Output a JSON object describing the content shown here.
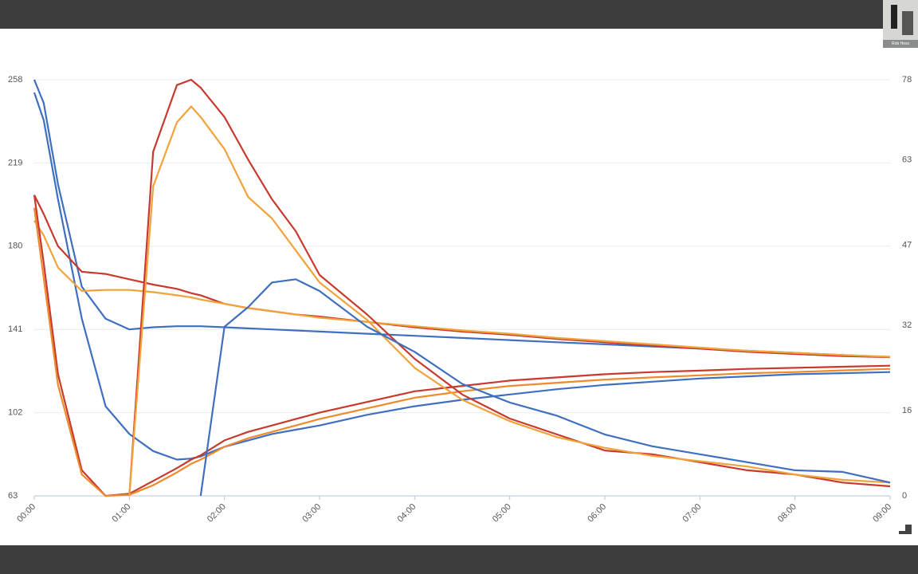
{
  "video_tile": {
    "label": "Rob Hess"
  },
  "chart_data": {
    "type": "line",
    "x": [
      0,
      0.1,
      0.25,
      0.5,
      0.75,
      1,
      1.25,
      1.5,
      1.65,
      1.75,
      2,
      2.25,
      2.5,
      2.75,
      3,
      3.5,
      4,
      4.5,
      5,
      5.5,
      6,
      6.5,
      7,
      7.5,
      8,
      8.5,
      9
    ],
    "xlim": [
      0,
      9
    ],
    "xticks": [
      {
        "value": 0,
        "label": "00:00"
      },
      {
        "value": 1,
        "label": "01:00"
      },
      {
        "value": 2,
        "label": "02:00"
      },
      {
        "value": 3,
        "label": "03:00"
      },
      {
        "value": 4,
        "label": "04:00"
      },
      {
        "value": 5,
        "label": "05:00"
      },
      {
        "value": 6,
        "label": "06:00"
      },
      {
        "value": 7,
        "label": "07:00"
      },
      {
        "value": 8,
        "label": "08:00"
      },
      {
        "value": 9,
        "label": "09:00"
      }
    ],
    "ylim": [
      63,
      258
    ],
    "yticks": [
      63,
      102,
      141,
      180,
      219,
      258
    ],
    "y2lim": [
      0,
      78
    ],
    "y2ticks": [
      0,
      16,
      32,
      47,
      63,
      78
    ],
    "grid": true,
    "series": [
      {
        "color": "#3f6fc0",
        "values": [
          258,
          247,
          209,
          161,
          146,
          141,
          142,
          142.5,
          142.5,
          142.5,
          142,
          141.5,
          141,
          140.5,
          140,
          139,
          138,
          137,
          136,
          135,
          134,
          133,
          132,
          131,
          130,
          129,
          128
        ]
      },
      {
        "color": "#3f6fc0",
        "values": [
          252,
          239,
          202,
          146,
          105,
          92,
          84,
          80,
          80.5,
          81.5,
          86,
          89,
          92,
          94,
          96,
          101,
          105,
          108,
          110.5,
          113,
          115,
          116.5,
          118,
          119,
          120,
          120.5,
          121
        ]
      },
      {
        "color": "#c8392e",
        "values": [
          204,
          195,
          180,
          168,
          167,
          164.5,
          162,
          160,
          158,
          157,
          153,
          151,
          149.5,
          148,
          147,
          144.5,
          142,
          140,
          138.5,
          136.5,
          135,
          133.5,
          132,
          130.5,
          129.5,
          128.5,
          128
        ]
      },
      {
        "color": "#f0a33a",
        "values": [
          192,
          185,
          170,
          159,
          159.5,
          159.5,
          158.5,
          157,
          156,
          155,
          153,
          151,
          149.5,
          148,
          146.5,
          144.5,
          142.5,
          140.5,
          139,
          137,
          135.5,
          134,
          132.5,
          131,
          130,
          129,
          128.2
        ]
      },
      {
        "color": "#c8392e",
        "values": [
          204,
          172,
          120,
          75,
          63,
          64,
          70,
          76,
          80,
          82,
          89,
          93,
          96,
          99,
          102,
          107,
          112,
          114.5,
          117,
          118.5,
          120,
          121,
          121.7,
          122.5,
          123,
          123.5,
          124
        ]
      },
      {
        "color": "#ee8a2c",
        "values": [
          198,
          165,
          115,
          73,
          63,
          63.5,
          68,
          74,
          78,
          80,
          86,
          90,
          93,
          96,
          99,
          104,
          109,
          112,
          114.5,
          116,
          117.5,
          118.5,
          119.5,
          120.5,
          121,
          121.8,
          122.5
        ]
      },
      {
        "color": "#c8392e",
        "axis": "y2",
        "values": [
          null,
          null,
          null,
          null,
          null,
          0,
          64.5,
          77,
          78,
          76.5,
          71,
          63,
          55.6,
          49.6,
          41.4,
          34,
          25.7,
          19,
          14.5,
          11.5,
          8.5,
          7.8,
          6.3,
          4.8,
          4,
          2.5,
          1.8
        ]
      },
      {
        "color": "#f0a33a",
        "axis": "y2",
        "values": [
          null,
          null,
          null,
          null,
          null,
          0,
          58,
          70,
          73,
          71,
          65,
          56,
          52,
          46,
          40,
          33,
          24,
          18,
          14,
          11,
          9,
          7.5,
          6.5,
          5.5,
          4,
          3,
          2.5
        ]
      },
      {
        "color": "#3f6fc0",
        "axis": "y2",
        "values": [
          null,
          null,
          null,
          null,
          null,
          null,
          null,
          null,
          null,
          0,
          31.7,
          35.4,
          40,
          40.6,
          38.4,
          31.7,
          27,
          21,
          17.5,
          15,
          11.5,
          9.3,
          7.8,
          6.3,
          4.8,
          4.5,
          2.5
        ]
      }
    ]
  }
}
